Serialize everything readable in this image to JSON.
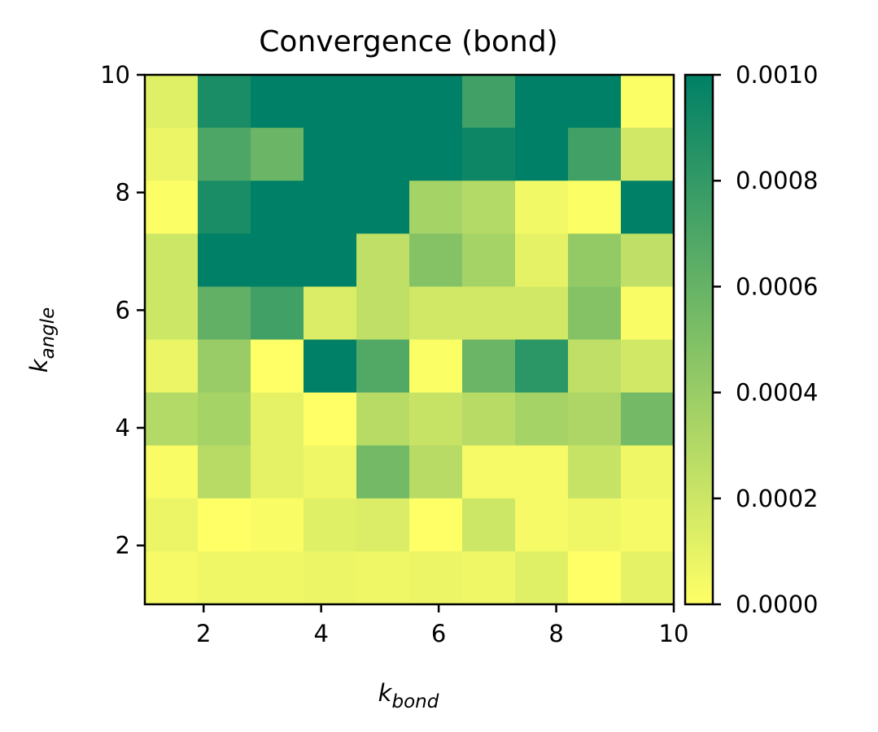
{
  "chart_data": {
    "type": "heatmap",
    "title": "Convergence (bond)",
    "xlabel": {
      "base": "k",
      "subscript": "bond"
    },
    "ylabel": {
      "base": "k",
      "subscript": "angle"
    },
    "x_range": [
      1,
      10
    ],
    "y_range": [
      1,
      10
    ],
    "x_ticks": [
      "2",
      "4",
      "6",
      "8",
      "10"
    ],
    "y_ticks": [
      "2",
      "4",
      "6",
      "8",
      "10"
    ],
    "x_tick_values": [
      2,
      4,
      6,
      8,
      10
    ],
    "y_tick_values": [
      2,
      4,
      6,
      8,
      10
    ],
    "colorbar": {
      "range": [
        0,
        0.001
      ],
      "ticks": [
        "0.0000",
        "0.0002",
        "0.0004",
        "0.0006",
        "0.0008",
        "0.0010"
      ],
      "tick_values": [
        0,
        0.0002,
        0.0004,
        0.0006,
        0.0008,
        0.001
      ],
      "colormap": "summer_r",
      "low_color": "#ffff66",
      "high_color": "#008066"
    },
    "grid": false,
    "cell_order": "rows listed from top (k_angle near 10) to bottom (k_angle near 1); columns from left (k_bond near 1) to right (k_bond near 10)",
    "values": [
      [
        0.00012,
        0.0009,
        0.001,
        0.001,
        0.001,
        0.001,
        0.00075,
        0.001,
        0.001,
        1e-05
      ],
      [
        8e-05,
        0.0007,
        0.00058,
        0.001,
        0.001,
        0.001,
        0.00095,
        0.001,
        0.00075,
        0.00018
      ],
      [
        1e-05,
        0.0009,
        0.001,
        0.001,
        0.001,
        0.00035,
        0.0003,
        5e-05,
        1e-05,
        0.001
      ],
      [
        0.0002,
        0.001,
        0.001,
        0.001,
        0.00025,
        0.00048,
        0.00035,
        0.0001,
        0.00042,
        0.00025
      ],
      [
        0.0002,
        0.00062,
        0.00075,
        0.00014,
        0.00025,
        0.00018,
        0.00018,
        0.00018,
        0.00048,
        2e-05
      ],
      [
        8e-05,
        0.0004,
        0.0,
        0.001,
        0.00068,
        1e-05,
        0.00058,
        0.00083,
        0.00025,
        0.00018
      ],
      [
        0.0003,
        0.00035,
        0.0001,
        0.0,
        0.00028,
        0.00022,
        0.00028,
        0.00035,
        0.00032,
        0.00055
      ],
      [
        2e-05,
        0.00028,
        0.0001,
        6e-05,
        0.00055,
        0.00028,
        4e-05,
        4e-05,
        0.00022,
        6e-05
      ],
      [
        8e-05,
        0.0,
        2e-05,
        0.00012,
        0.00014,
        0.0,
        0.0002,
        4e-05,
        6e-05,
        4e-05
      ],
      [
        4e-05,
        6e-05,
        6e-05,
        8e-05,
        6e-05,
        8e-05,
        6e-05,
        0.00012,
        0.0,
        0.0001
      ]
    ]
  }
}
